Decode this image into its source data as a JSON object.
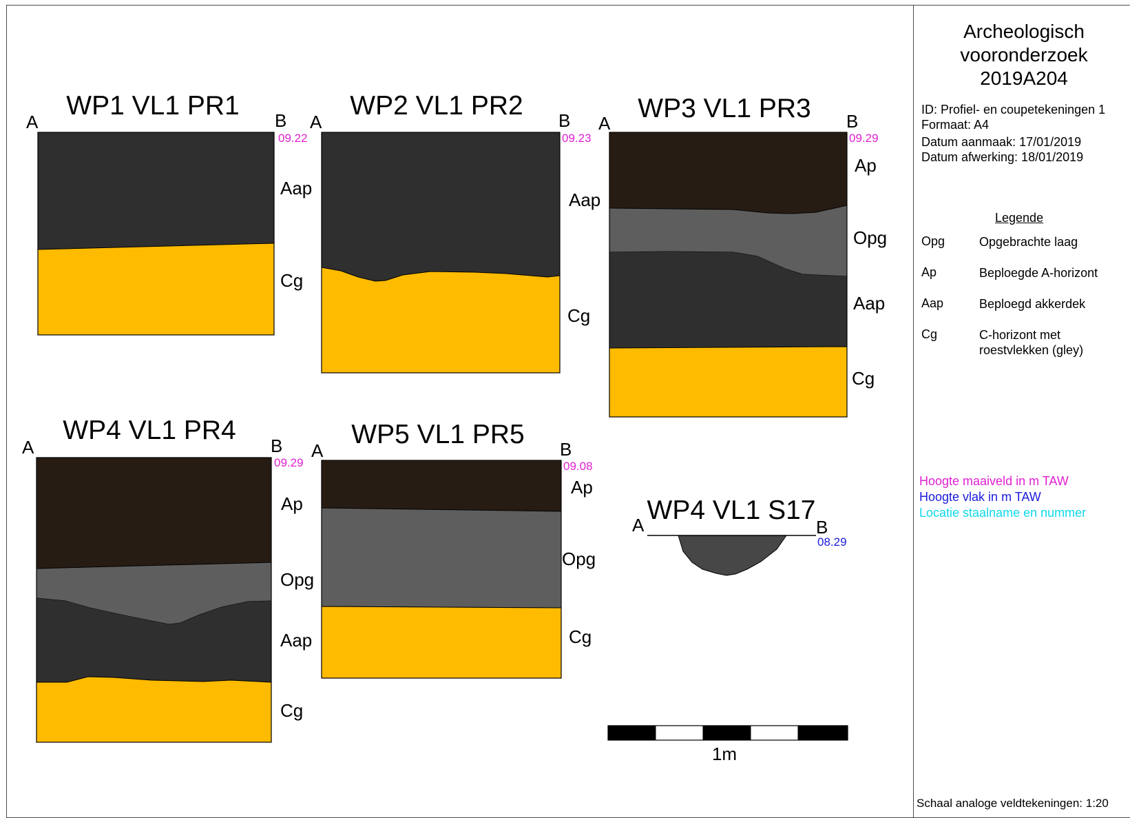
{
  "colors": {
    "Ap": "#271c14",
    "Opg": "#5e5e5e",
    "Aap": "#2f2f2f",
    "Cg": "#ffbb00",
    "S17": "#474747",
    "maaiveld": "#e020d0",
    "vlak": "#1a1adc",
    "staal": "#10d8ea"
  },
  "end_labels": {
    "a": "A",
    "b": "B"
  },
  "profiles": [
    {
      "id": "pr1",
      "title": "WP1 VL1 PR1",
      "height": "09.22",
      "layers": [
        {
          "code": "Aap",
          "label": "Aap",
          "from_m": 0.0,
          "to_m": 0.5
        },
        {
          "code": "Cg",
          "label": "Cg",
          "from_m": 0.5,
          "to_m": 0.85
        }
      ]
    },
    {
      "id": "pr2",
      "title": "WP2 VL1 PR2",
      "height": "09.23",
      "layers": [
        {
          "code": "Aap",
          "label": "Aap"
        },
        {
          "code": "Cg",
          "label": "Cg"
        }
      ]
    },
    {
      "id": "pr3",
      "title": "WP3 VL1 PR3",
      "height": "09.29",
      "layers": [
        {
          "code": "Ap",
          "label": "Ap"
        },
        {
          "code": "Opg",
          "label": "Opg"
        },
        {
          "code": "Aap",
          "label": "Aap"
        },
        {
          "code": "Cg",
          "label": "Cg"
        }
      ]
    },
    {
      "id": "pr4",
      "title": "WP4 VL1 PR4",
      "height": "09.29",
      "layers": [
        {
          "code": "Ap",
          "label": "Ap"
        },
        {
          "code": "Opg",
          "label": "Opg"
        },
        {
          "code": "Aap",
          "label": "Aap"
        },
        {
          "code": "Cg",
          "label": "Cg"
        }
      ]
    },
    {
      "id": "pr5",
      "title": "WP5 VL1 PR5",
      "height": "09.08",
      "layers": [
        {
          "code": "Ap",
          "label": "Ap"
        },
        {
          "code": "Opg",
          "label": "Opg"
        },
        {
          "code": "Cg",
          "label": "Cg"
        }
      ]
    }
  ],
  "section": {
    "id": "s17",
    "title": "WP4 VL1 S17",
    "height": "08.29"
  },
  "scale_bar": {
    "label": "1m",
    "length_m": 1,
    "segments": 5
  },
  "info": {
    "title_lines": [
      "Archeologisch",
      "vooronderzoek",
      "2019A204"
    ],
    "meta": [
      "ID: Profiel- en coupetekeningen 1",
      "Formaat: A4",
      "Datum aanmaak: 17/01/2019",
      "Datum afwerking: 18/01/2019"
    ],
    "legend_title": "Legende",
    "legend": [
      {
        "code": "Opg",
        "desc": "Opgebrachte laag"
      },
      {
        "code": "Ap",
        "desc": "Beploegde A-horizont"
      },
      {
        "code": "Aap",
        "desc": "Beploegd akkerdek"
      },
      {
        "code": "Cg",
        "desc": "C-horizont met roestvlekken (gley)"
      }
    ],
    "color_key": [
      {
        "text": "Hoogte maaiveld in m TAW",
        "color": "#e020d0"
      },
      {
        "text": "Hoogte vlak in m TAW",
        "color": "#1a1adc"
      },
      {
        "text": "Locatie staalname en nummer",
        "color": "#10d8ea"
      }
    ],
    "scale_note": "Schaal analoge veldtekeningen: 1:20"
  }
}
